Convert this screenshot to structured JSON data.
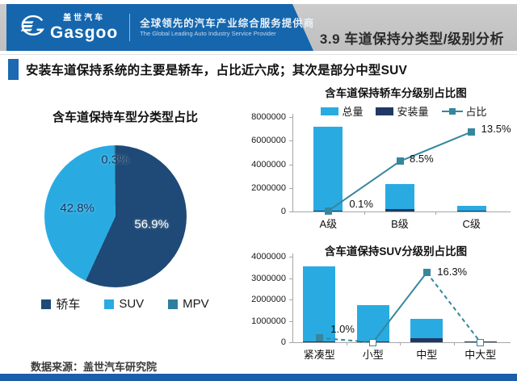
{
  "header": {
    "logo_cn": "盖世汽车",
    "logo_text": "Gasgoo",
    "tagline_cn": "全球领先的汽车产业综合服务提供商",
    "tagline_en": "The Global Leading Auto Industry Service Provider",
    "section_title": "3.9 车道保持分类型/级别分析"
  },
  "headline": "安装车道保持系统的主要是轿车，占比近六成；其次是部分中型SUV",
  "footer": {
    "source": "数据来源：盖世汽车研究院"
  },
  "colors": {
    "banner_blue": "#1566ad",
    "header_gray": "#c6c6c6",
    "accent_bullet": "#1d6ab2",
    "footer_blue": "#1c5ea9",
    "bar_light_blue": "#29abe2",
    "bar_navy": "#1f3864",
    "pie_dark_blue": "#1f4a77",
    "pie_light_blue": "#29abe2",
    "pie_teal": "#2e7f9e",
    "trend_teal": "#35879e",
    "axis_gray": "#a6a6a6"
  },
  "chart_data": [
    {
      "type": "pie",
      "title": "含车道保持车型分类型占比",
      "labels": [
        "轿车",
        "SUV",
        "MPV"
      ],
      "values": [
        56.9,
        42.8,
        0.3
      ],
      "value_labels": [
        "56.9%",
        "42.8%",
        "0.3%"
      ],
      "colors": [
        "#1f4a77",
        "#29abe2",
        "#2e7f9e"
      ],
      "legend_position": "bottom",
      "start_angle_deg": 0
    },
    {
      "type": "bar-line-combo",
      "title": "含车道保持轿车分级别占比图",
      "categories": [
        "A级",
        "B级",
        "C级"
      ],
      "series": [
        {
          "name": "总量",
          "type": "bar",
          "color": "#29abe2",
          "values": [
            7200000,
            2300000,
            450000
          ]
        },
        {
          "name": "安装量",
          "type": "bar",
          "color": "#1f3864",
          "values": [
            10000,
            200000,
            60000
          ]
        },
        {
          "name": "占比",
          "type": "line",
          "color": "#35879e",
          "values_pct": [
            0.1,
            8.5,
            13.5
          ],
          "labels": [
            "0.1%",
            "8.5%",
            "13.5%"
          ],
          "marker_hollow": [
            false,
            false,
            false
          ],
          "segment_dashed": [
            false,
            false
          ]
        }
      ],
      "ylim": [
        0,
        8000000
      ],
      "yticks": [
        0,
        2000000,
        4000000,
        6000000,
        8000000
      ],
      "pct_axis_max": 16,
      "grid": false,
      "legend_position": "top"
    },
    {
      "type": "bar-line-combo",
      "title": "含车道保持SUV分级别占比图",
      "categories": [
        "紧凑型",
        "小型",
        "中型",
        "中大型"
      ],
      "series": [
        {
          "name": "总量",
          "type": "bar",
          "color": "#29abe2",
          "values": [
            3550000,
            1750000,
            1100000,
            40000
          ]
        },
        {
          "name": "安装量",
          "type": "bar",
          "color": "#1f3864",
          "values": [
            35000,
            5000,
            180000,
            3000
          ]
        },
        {
          "name": "占比",
          "type": "line",
          "color": "#35879e",
          "values_pct": [
            1.0,
            0.0,
            16.3,
            0.0
          ],
          "labels": [
            "1.0%",
            null,
            "16.3%",
            null
          ],
          "marker_hollow": [
            false,
            true,
            false,
            true
          ],
          "segment_dashed": [
            true,
            false,
            true
          ]
        }
      ],
      "ylim": [
        0,
        4000000
      ],
      "yticks": [
        0,
        1000000,
        2000000,
        3000000,
        4000000
      ],
      "pct_axis_max": 20,
      "grid": false,
      "legend_position": "none"
    }
  ]
}
